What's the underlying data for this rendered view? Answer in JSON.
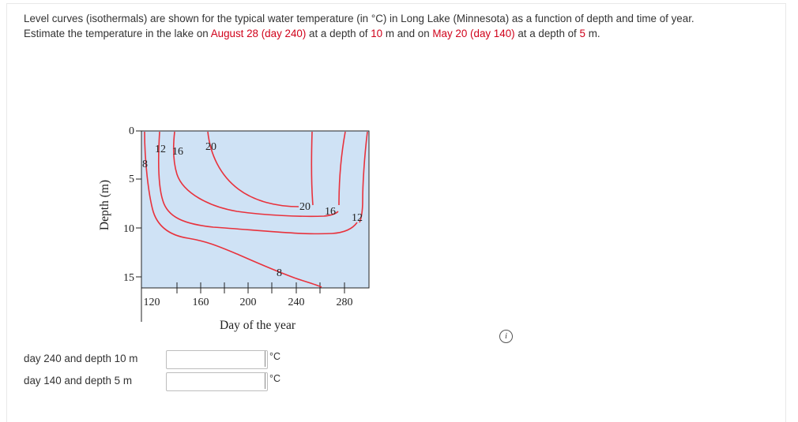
{
  "question": {
    "line1": "Level curves (isothermals) are shown for the typical water temperature (in °C) in Long Lake (Minnesota) as a function of depth and time of year.",
    "line2_a": "Estimate the temperature in the lake on ",
    "date1": "August 28 (day 240)",
    "line2_b": " at a depth of ",
    "depth1": "10",
    "line2_c": " m and on ",
    "date2": "May 20 (day 140)",
    "line2_d": " at a depth of ",
    "depth2": "5",
    "line2_e": " m."
  },
  "chart_data": {
    "type": "contour",
    "xlabel": "Day of the year",
    "ylabel": "Depth (m)",
    "xticks": [
      "120",
      "160",
      "200",
      "240",
      "280"
    ],
    "yticks": [
      "0",
      "5",
      "10",
      "15"
    ],
    "xlim": [
      120,
      295
    ],
    "ylim": [
      0,
      16
    ],
    "contour_labels": [
      "8",
      "12",
      "16",
      "20",
      "20",
      "16",
      "12",
      "8"
    ],
    "colors": {
      "fill": "#cfe2f5",
      "curves": "#e8323c",
      "frame": "#222222"
    }
  },
  "answers": [
    {
      "label": "day 240 and depth 10 m",
      "value": "",
      "unit": "°C"
    },
    {
      "label": "day 140 and depth 5 m",
      "value": "",
      "unit": "°C"
    }
  ],
  "info_icon": "info-icon"
}
